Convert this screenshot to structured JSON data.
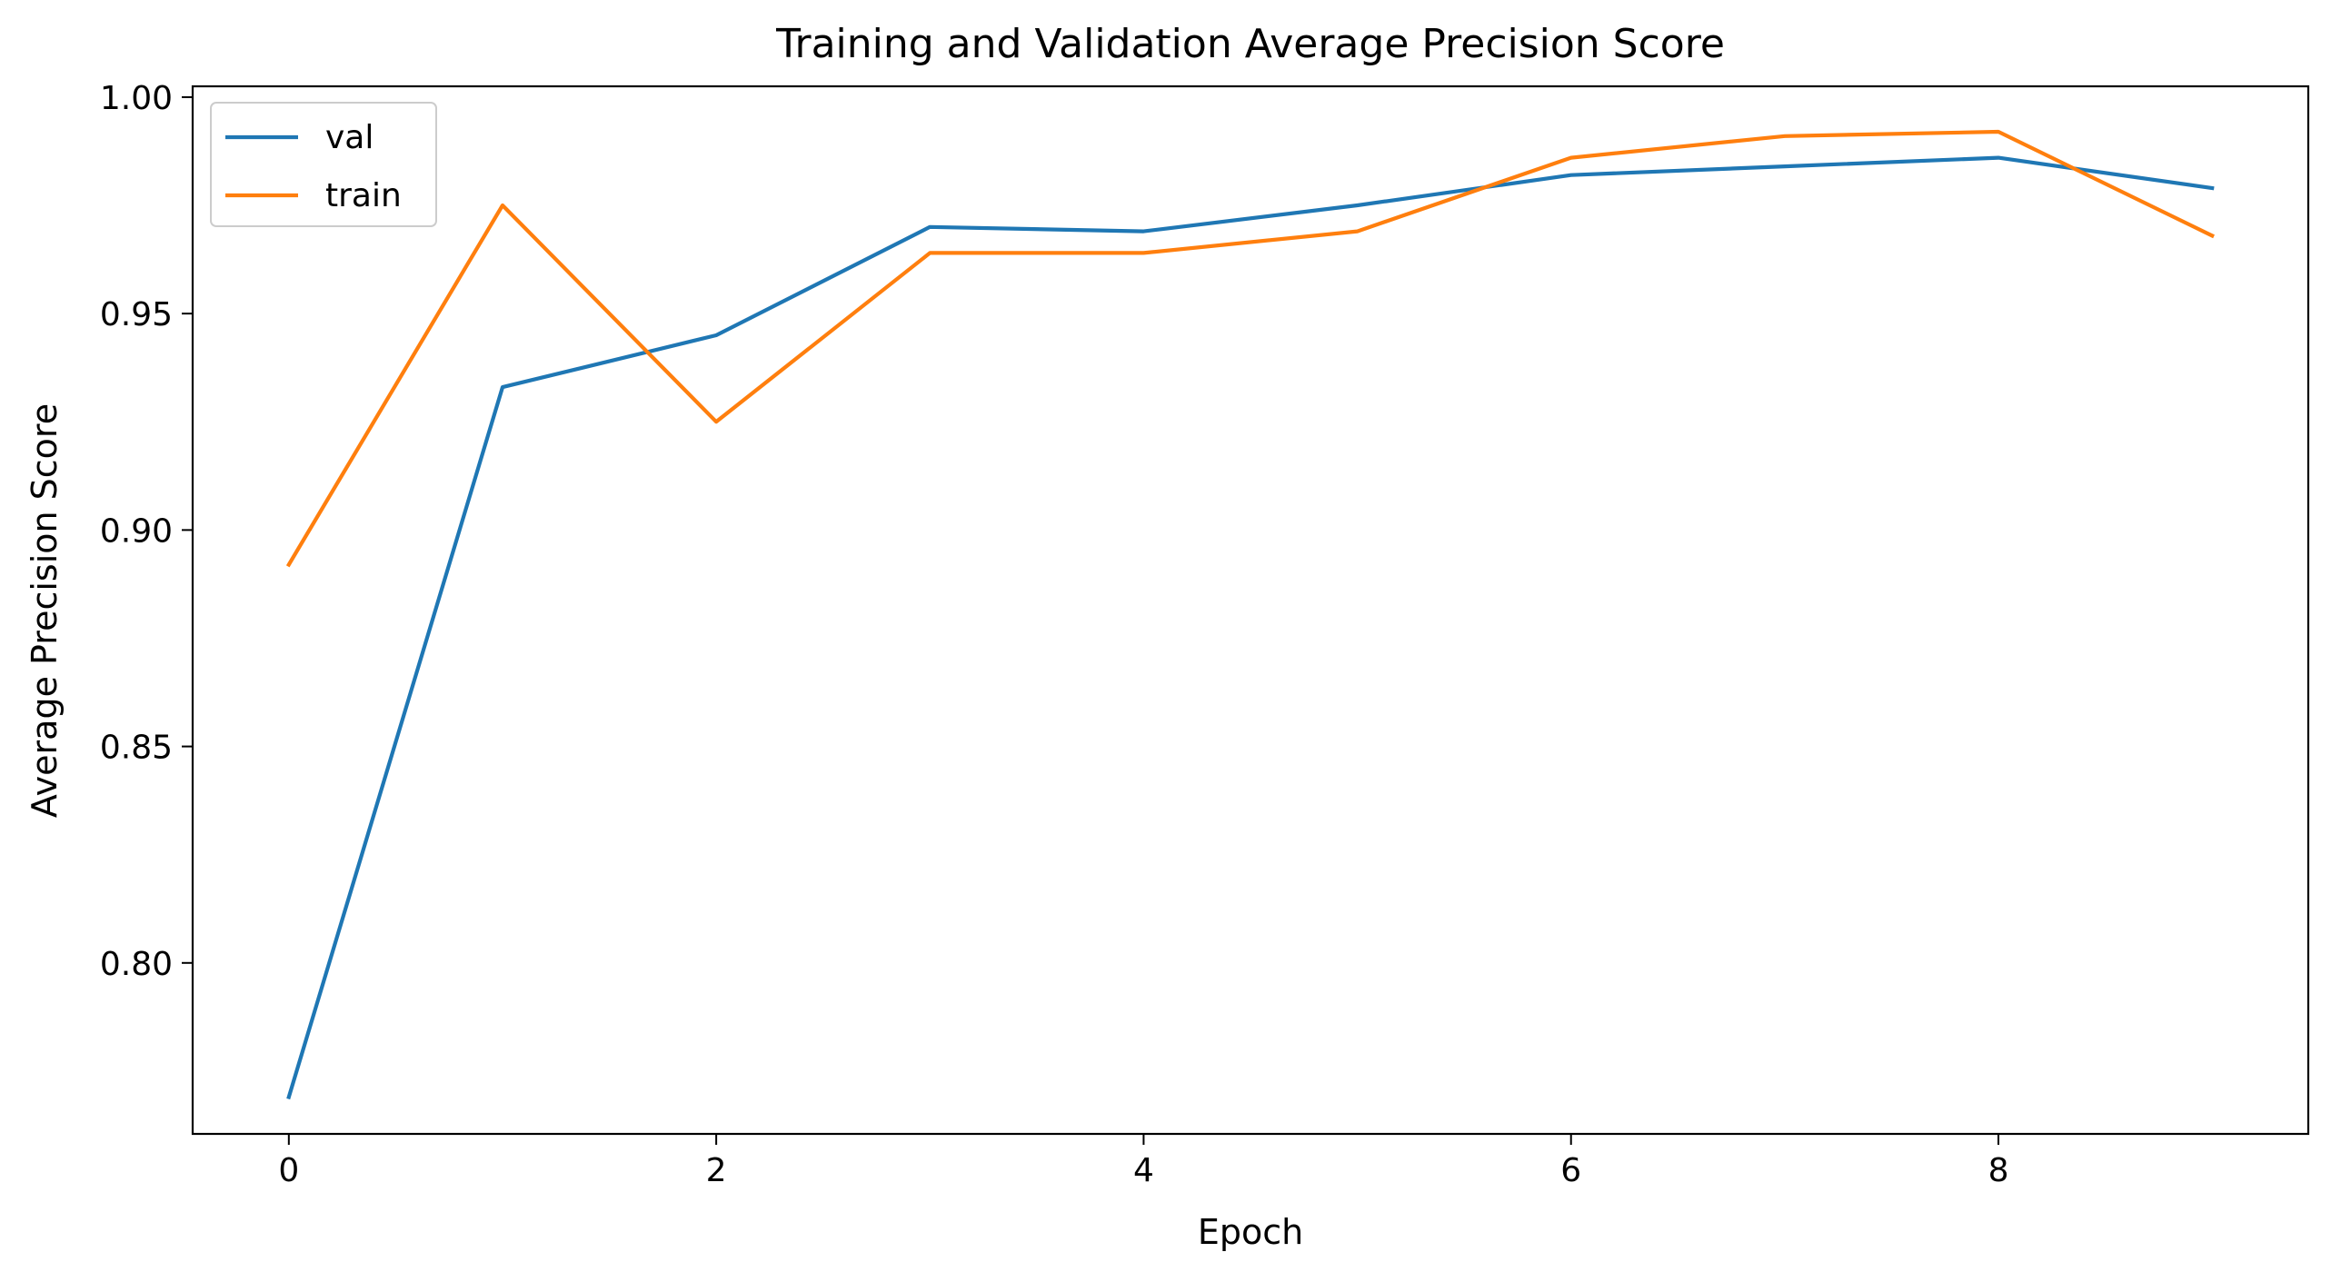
{
  "chart_data": {
    "type": "line",
    "title": "Training and Validation Average Precision Score",
    "xlabel": "Epoch",
    "ylabel": "Average Precision Score",
    "x": [
      0,
      1,
      2,
      3,
      4,
      5,
      6,
      7,
      8,
      9
    ],
    "xlim": [
      -0.45,
      9.45
    ],
    "ylim": [
      0.7605,
      1.0025
    ],
    "xticks": [
      0,
      2,
      4,
      6,
      8
    ],
    "xtick_labels": [
      "0",
      "2",
      "4",
      "6",
      "8"
    ],
    "yticks": [
      0.8,
      0.85,
      0.9,
      0.95,
      1.0
    ],
    "ytick_labels": [
      "0.80",
      "0.85",
      "0.90",
      "0.95",
      "1.00"
    ],
    "grid": false,
    "legend_position": "upper left",
    "series": [
      {
        "name": "val",
        "color": "#1f77b4",
        "values": [
          0.769,
          0.933,
          0.945,
          0.97,
          0.969,
          0.975,
          0.982,
          0.984,
          0.986,
          0.979
        ]
      },
      {
        "name": "train",
        "color": "#ff7f0e",
        "values": [
          0.892,
          0.975,
          0.925,
          0.964,
          0.964,
          0.969,
          0.986,
          0.991,
          0.992,
          0.968
        ]
      }
    ]
  }
}
